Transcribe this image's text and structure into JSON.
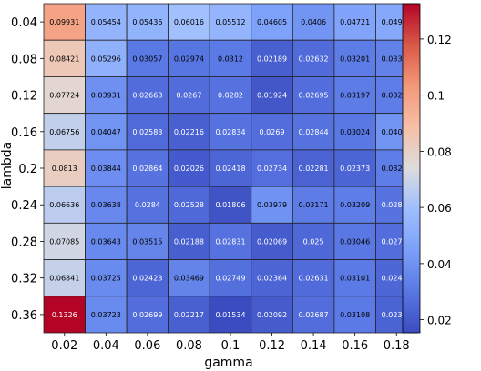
{
  "chart_data": {
    "type": "heatmap",
    "xlabel": "gamma",
    "ylabel": "lambda",
    "x_categories": [
      "0.02",
      "0.04",
      "0.06",
      "0.08",
      "0.1",
      "0.12",
      "0.14",
      "0.16",
      "0.18"
    ],
    "y_categories": [
      "0.04",
      "0.08",
      "0.12",
      "0.16",
      "0.2",
      "0.24",
      "0.28",
      "0.32",
      "0.36"
    ],
    "values": [
      [
        0.09931,
        0.05454,
        0.05436,
        0.06016,
        0.05512,
        0.04605,
        0.0406,
        0.04721,
        0.04906
      ],
      [
        0.08421,
        0.05296,
        0.03057,
        0.02974,
        0.0312,
        0.02189,
        0.02632,
        0.03201,
        0.03385
      ],
      [
        0.07724,
        0.03931,
        0.02663,
        0.0267,
        0.0282,
        0.01924,
        0.02695,
        0.03197,
        0.03231
      ],
      [
        0.06756,
        0.04047,
        0.02583,
        0.02216,
        0.02834,
        0.0269,
        0.02844,
        0.03024,
        0.04099
      ],
      [
        0.0813,
        0.03844,
        0.02864,
        0.02026,
        0.02418,
        0.02734,
        0.02281,
        0.02373,
        0.03205
      ],
      [
        0.06636,
        0.03638,
        0.0284,
        0.02528,
        0.01806,
        0.03979,
        0.03171,
        0.03209,
        0.02876
      ],
      [
        0.07085,
        0.03643,
        0.03515,
        0.02188,
        0.02831,
        0.02069,
        0.025,
        0.03046,
        0.02705
      ],
      [
        0.06841,
        0.03725,
        0.02423,
        0.03469,
        0.02749,
        0.02364,
        0.02631,
        0.03101,
        0.02444
      ],
      [
        0.1326,
        0.03723,
        0.02699,
        0.02217,
        0.01534,
        0.02092,
        0.02687,
        0.03108,
        0.02337
      ]
    ],
    "cell_labels": [
      [
        "0.09931",
        "0.05454",
        "0.05436",
        "0.06016",
        "0.05512",
        "0.04605",
        "0.0406",
        "0.04721",
        "0.04906"
      ],
      [
        "0.08421",
        "0.05296",
        "0.03057",
        "0.02974",
        "0.0312",
        "0.02189",
        "0.02632",
        "0.03201",
        "0.03385"
      ],
      [
        "0.07724",
        "0.03931",
        "0.02663",
        "0.0267",
        "0.0282",
        "0.01924",
        "0.02695",
        "0.03197",
        "0.03231"
      ],
      [
        "0.06756",
        "0.04047",
        "0.02583",
        "0.02216",
        "0.02834",
        "0.0269",
        "0.02844",
        "0.03024",
        "0.04099"
      ],
      [
        "0.0813",
        "0.03844",
        "0.02864",
        "0.02026",
        "0.02418",
        "0.02734",
        "0.02281",
        "0.02373",
        "0.03205"
      ],
      [
        "0.06636",
        "0.03638",
        "0.0284",
        "0.02528",
        "0.01806",
        "0.03979",
        "0.03171",
        "0.03209",
        "0.02876"
      ],
      [
        "0.07085",
        "0.03643",
        "0.03515",
        "0.02188",
        "0.02831",
        "0.02069",
        "0.025",
        "0.03046",
        "0.02705"
      ],
      [
        "0.06841",
        "0.03725",
        "0.02423",
        "0.03469",
        "0.02749",
        "0.02364",
        "0.02631",
        "0.03101",
        "0.02444"
      ],
      [
        "0.1326",
        "0.03723",
        "0.02699",
        "0.02217",
        "0.01534",
        "0.02092",
        "0.02687",
        "0.03108",
        "0.02337"
      ]
    ],
    "colormap": "coolwarm",
    "colorbar": {
      "range": [
        0.01534,
        0.1326
      ],
      "ticks": [
        0.02,
        0.04,
        0.06,
        0.08,
        0.1,
        0.12
      ],
      "tick_labels": [
        "0.02",
        "0.04",
        "0.06",
        "0.08",
        "0.1",
        "0.12"
      ]
    },
    "cell_border_color": "#222222",
    "grid": false
  }
}
